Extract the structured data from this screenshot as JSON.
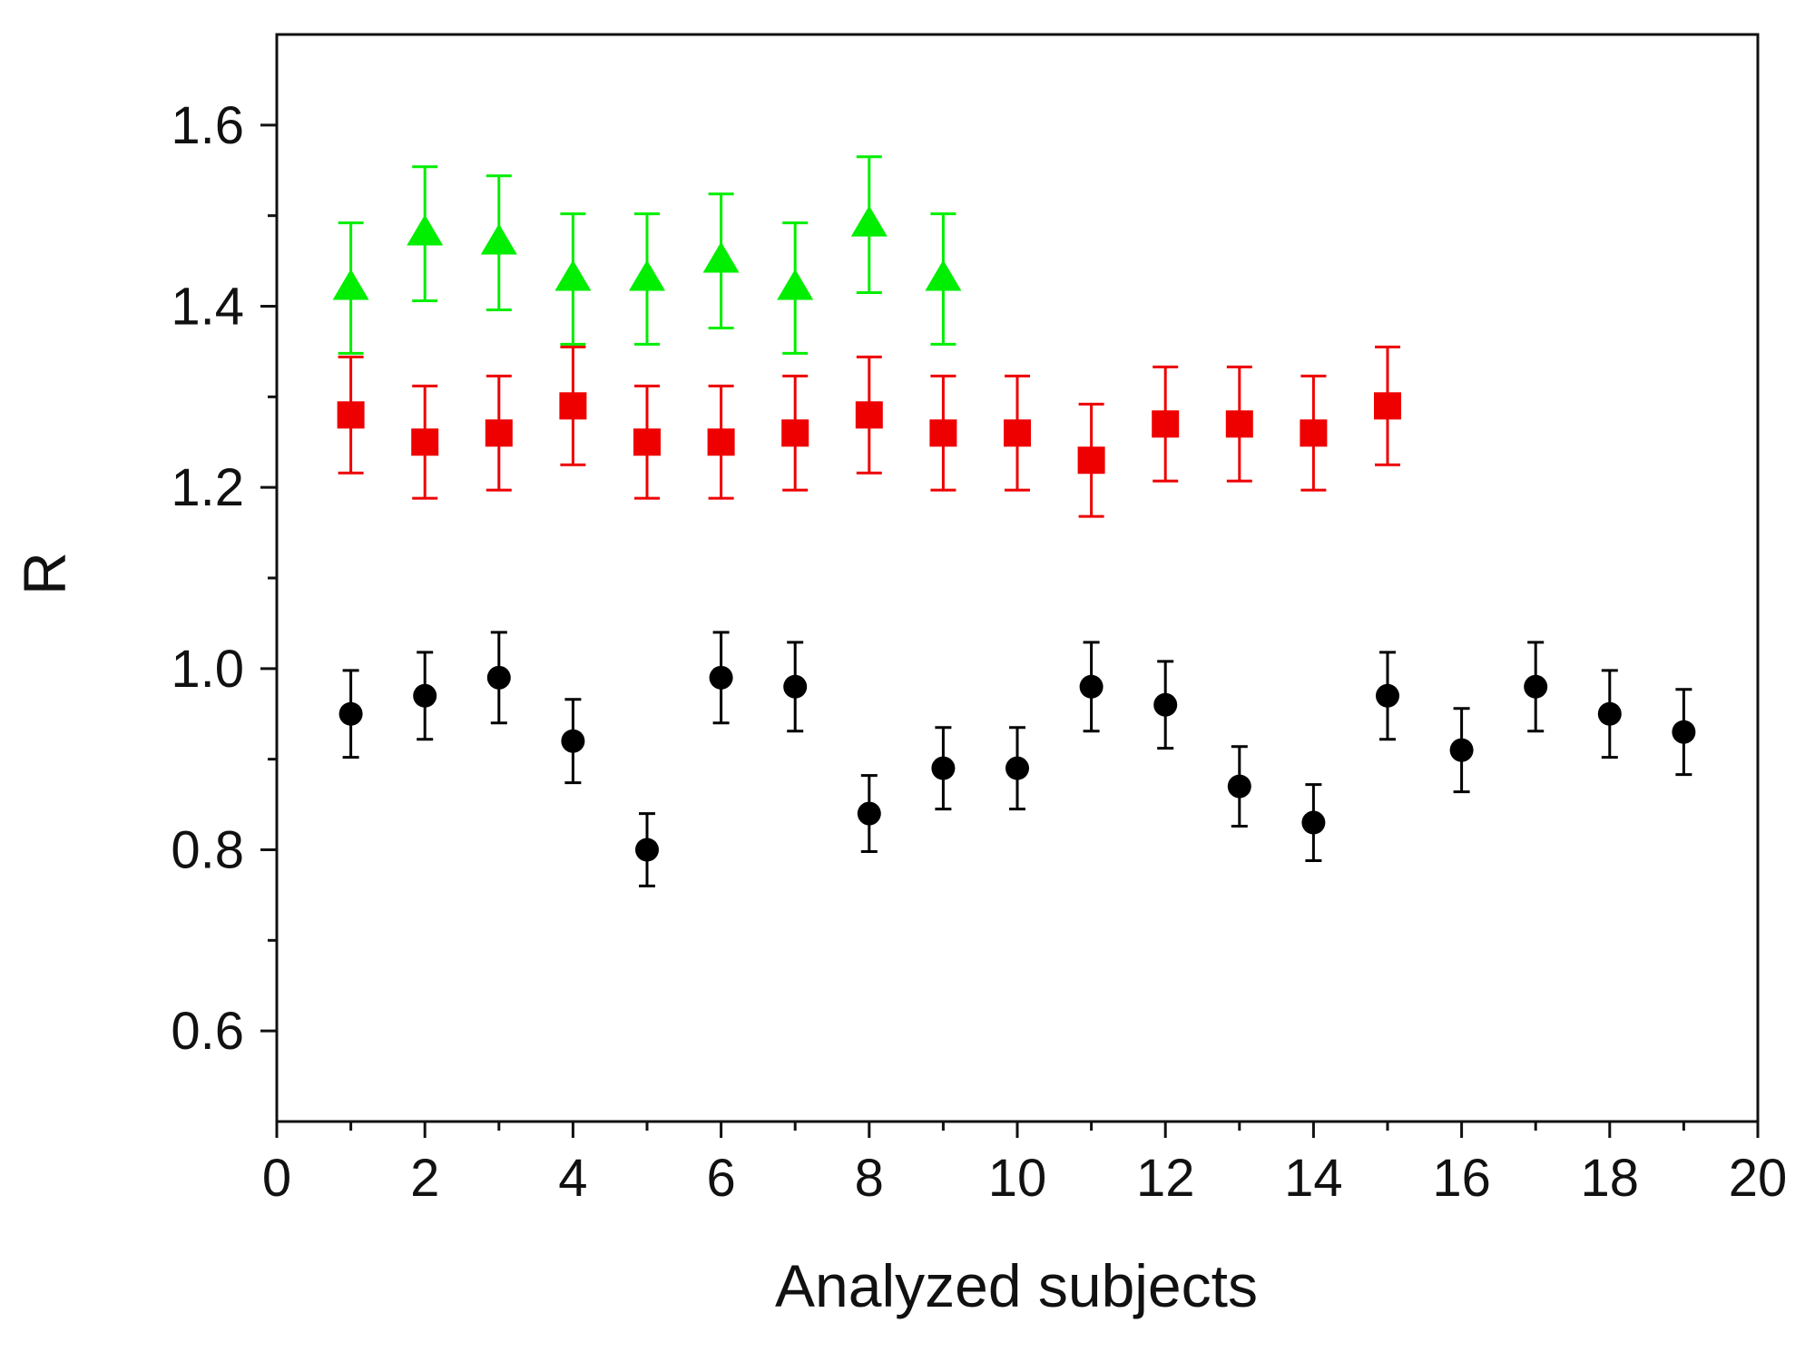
{
  "chart_data": {
    "type": "scatter",
    "title": "",
    "xlabel": "Analyzed subjects",
    "ylabel": "R",
    "xlim": [
      0,
      20
    ],
    "ylim": [
      0.5,
      1.7
    ],
    "xticks": [
      0,
      2,
      4,
      6,
      8,
      10,
      12,
      14,
      16,
      18,
      20
    ],
    "xtick_labels": [
      "0",
      "2",
      "4",
      "6",
      "8",
      "10",
      "12",
      "14",
      "16",
      "18",
      "20"
    ],
    "yticks": [
      0.6,
      0.8,
      1.0,
      1.2,
      1.4,
      1.6
    ],
    "ytick_labels": [
      "0.6",
      "0.8",
      "1.0",
      "1.2",
      "1.4",
      "1.6"
    ],
    "grid": false,
    "legend": "none",
    "series": [
      {
        "name": "green triangles",
        "color": "#00ee00",
        "marker": "triangle",
        "x": [
          1,
          2,
          3,
          4,
          5,
          6,
          7,
          8,
          9
        ],
        "y": [
          1.42,
          1.48,
          1.47,
          1.43,
          1.43,
          1.45,
          1.42,
          1.49,
          1.43
        ],
        "err": [
          0.072,
          0.074,
          0.074,
          0.072,
          0.072,
          0.074,
          0.072,
          0.075,
          0.072
        ]
      },
      {
        "name": "red squares",
        "color": "#ee0000",
        "marker": "square",
        "x": [
          1,
          2,
          3,
          4,
          5,
          6,
          7,
          8,
          9,
          10,
          11,
          12,
          13,
          14,
          15
        ],
        "y": [
          1.28,
          1.25,
          1.26,
          1.29,
          1.25,
          1.25,
          1.26,
          1.28,
          1.26,
          1.26,
          1.23,
          1.27,
          1.27,
          1.26,
          1.29
        ],
        "err": [
          0.064,
          0.062,
          0.063,
          0.065,
          0.062,
          0.062,
          0.063,
          0.064,
          0.063,
          0.063,
          0.062,
          0.063,
          0.063,
          0.063,
          0.065
        ]
      },
      {
        "name": "black circles",
        "color": "#000000",
        "marker": "circle",
        "x": [
          1,
          2,
          3,
          4,
          5,
          6,
          7,
          8,
          9,
          10,
          11,
          12,
          13,
          14,
          15,
          16,
          17,
          18,
          19
        ],
        "y": [
          0.95,
          0.97,
          0.99,
          0.92,
          0.8,
          0.99,
          0.98,
          0.84,
          0.89,
          0.89,
          0.98,
          0.96,
          0.87,
          0.83,
          0.97,
          0.91,
          0.98,
          0.95,
          0.93
        ],
        "err": [
          0.048,
          0.048,
          0.05,
          0.046,
          0.04,
          0.05,
          0.049,
          0.042,
          0.045,
          0.045,
          0.049,
          0.048,
          0.044,
          0.042,
          0.048,
          0.046,
          0.049,
          0.048,
          0.047
        ]
      }
    ]
  }
}
